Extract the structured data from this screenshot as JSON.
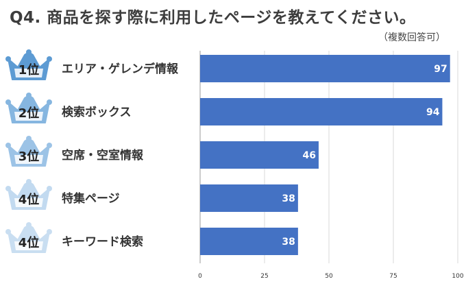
{
  "title": "Q4. 商品を探す際に利用したページを教えてください。",
  "subtitle": "（複数回答可）",
  "colors": {
    "bar": "#4472c4",
    "crown": [
      "#5d9bd3",
      "#86b6e0",
      "#9cc3e6",
      "#c2daf0",
      "#c9def1"
    ],
    "crown_inner": "#ffffff"
  },
  "chart_data": {
    "type": "bar",
    "orientation": "horizontal",
    "categories": [
      "エリア・ゲレンデ情報",
      "検索ボックス",
      "空席・空室情報",
      "特集ページ",
      "キーワード検索"
    ],
    "ranks": [
      "1位",
      "2位",
      "3位",
      "4位",
      "4位"
    ],
    "values": [
      97,
      94,
      46,
      38,
      38
    ],
    "xlim": [
      0,
      100
    ],
    "xticks": [
      0,
      25,
      50,
      75,
      100
    ],
    "grid": true,
    "legend": "none"
  }
}
